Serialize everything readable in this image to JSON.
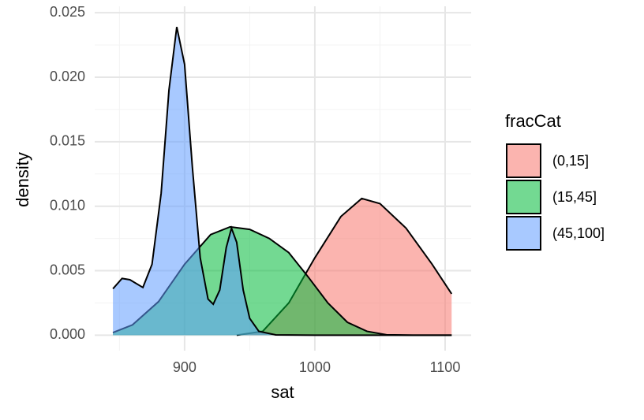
{
  "chart_data": {
    "type": "area",
    "x_label": "sat",
    "y_label": "density",
    "xlim": [
      831,
      1120
    ],
    "ylim": [
      -0.0012,
      0.0255
    ],
    "xticks": [
      900,
      1000,
      1100
    ],
    "yticks": [
      {
        "value": 0,
        "label": "0.000"
      },
      0.005,
      {
        "value": 0.01,
        "label": "0.010"
      },
      0.015,
      {
        "value": 0.02,
        "label": "0.020"
      },
      0.025
    ],
    "grid": true,
    "legend_title": "fracCat",
    "legend_position": "right",
    "series": [
      {
        "name": "(0,15]",
        "color": "#F8766D",
        "x": [
          940,
          960,
          980,
          1000,
          1020,
          1036,
          1050,
          1070,
          1090,
          1105
        ],
        "values": [
          0,
          0.0003,
          0.0025,
          0.006,
          0.0092,
          0.0106,
          0.0102,
          0.0083,
          0.0055,
          0.0032
        ]
      },
      {
        "name": "(15,45]",
        "color": "#00BA38",
        "x": [
          845,
          860,
          880,
          900,
          920,
          935,
          950,
          965,
          980,
          995,
          1010,
          1025,
          1040,
          1055,
          1075,
          1105
        ],
        "values": [
          0.0002,
          0.0008,
          0.0026,
          0.0055,
          0.0078,
          0.0084,
          0.0082,
          0.0075,
          0.0064,
          0.0045,
          0.0025,
          0.001,
          0.0003,
          3e-05,
          0,
          0
        ]
      },
      {
        "name": "(45,100]",
        "color": "#619CFF",
        "x": [
          845,
          852,
          858,
          868,
          875,
          882,
          888,
          894,
          900,
          906,
          912,
          918,
          922,
          927,
          932,
          936,
          940,
          945,
          950,
          957,
          970,
          1000,
          1105
        ],
        "values": [
          0.0036,
          0.0044,
          0.0043,
          0.0037,
          0.0055,
          0.011,
          0.019,
          0.0239,
          0.021,
          0.013,
          0.006,
          0.0028,
          0.0024,
          0.0035,
          0.0068,
          0.0083,
          0.0072,
          0.0035,
          0.0013,
          0.0003,
          2e-05,
          0,
          0
        ]
      }
    ]
  }
}
